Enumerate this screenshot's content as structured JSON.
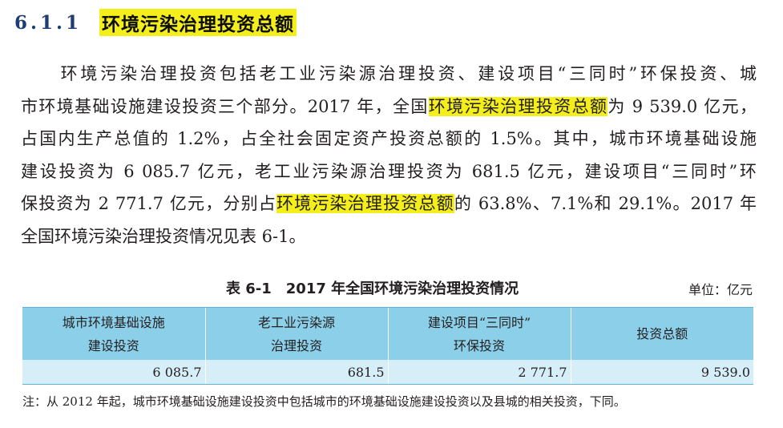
{
  "section": {
    "number": "6.1.1",
    "title": "环境污染治理投资总额"
  },
  "paragraph": {
    "l1": "　　环境污染治理投资包括老工业污染源治理投资、建设项目“三同时”环保投资、城",
    "l2a": "市环境基础设施建设投资三个部分。2017 年，全国",
    "l2hl": "环境污染治理投资总额",
    "l2b": "为 9 539.0 亿元，",
    "l3": "占国内生产总值的 1.2%，占全社会固定资产投资总额的 1.5%。其中，城市环境基础设施",
    "l4": "建设投资为 6 085.7 亿元，老工业污染源治理投资为 681.5 亿元，建设项目“三同时”环",
    "l5a": "保投资为 2 771.7 亿元，分别占",
    "l5hl": "环境污染治理投资总额",
    "l5b": "的 63.8%、7.1%和 29.1%。2017 年",
    "l6": "全国环境污染治理投资情况见表 6-1。"
  },
  "table": {
    "caption": "表 6-1　2017 年全国环境污染治理投资情况",
    "unit": "单位：亿元",
    "headers": [
      {
        "line1": "城市环境基础设施",
        "line2": "建设投资"
      },
      {
        "line1": "老工业污染源",
        "line2": "治理投资"
      },
      {
        "line1": "建设项目“三同时”",
        "line2": "环保投资"
      },
      {
        "line1": "投资总额",
        "line2": ""
      }
    ],
    "row": [
      "6 085.7",
      "681.5",
      "2 771.7",
      "9 539.0"
    ]
  },
  "note": "注：从 2012 年起，城市环境基础设施建设投资中包括城市的环境基础设施建设投资以及县城的相关投资，下同。",
  "colors": {
    "heading": "#1f3d73",
    "highlight": "#f4ee1a",
    "table_header_bg": "#8ccfe9",
    "table_row_bg": "#d6eef8"
  }
}
